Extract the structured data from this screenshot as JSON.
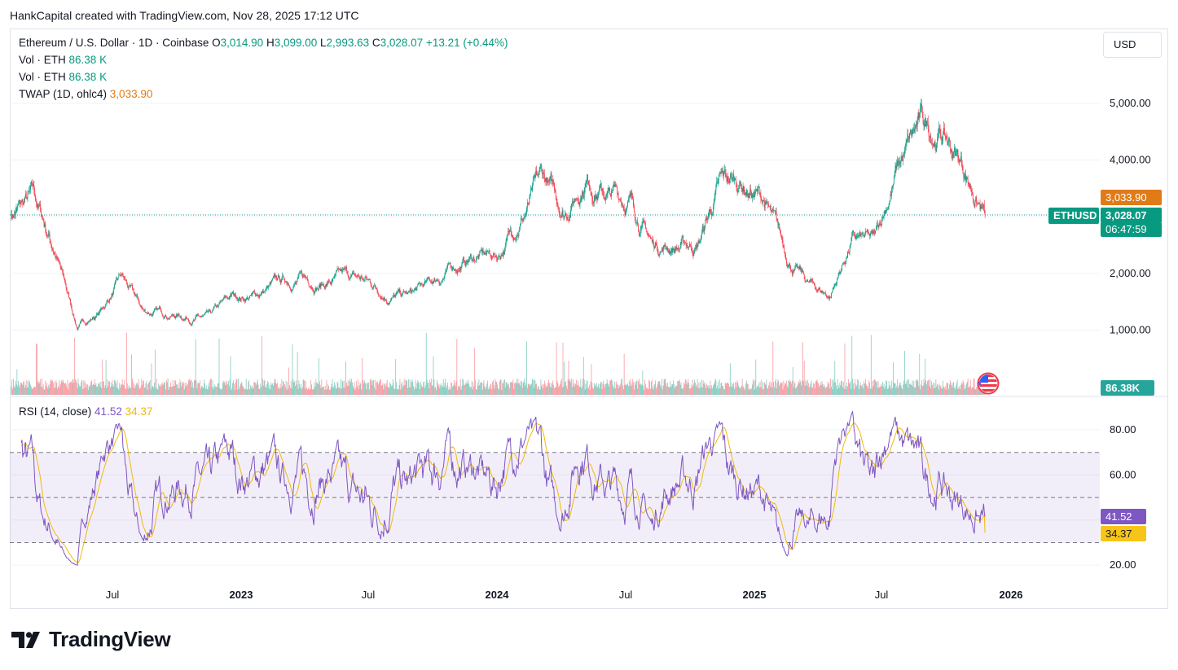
{
  "attribution": "HankCapital created with TradingView.com, Nov 28, 2025 17:12 UTC",
  "legend": {
    "symbol": "Ethereum / U.S. Dollar · 1D · Coinbase",
    "open_label": "O",
    "open_value": "3,014.90",
    "high_label": "H",
    "high_value": "3,099.00",
    "low_label": "L",
    "low_value": "2,993.63",
    "close_label": "C",
    "close_value": "3,028.07",
    "change": "+13.21 (+0.44%)",
    "vol1_label": "Vol · ETH",
    "vol1_value": "86.38 K",
    "vol2_label": "Vol · ETH",
    "vol2_value": "86.38 K",
    "twap_label": "TWAP (1D, ohlc4)",
    "twap_value": "3,033.90",
    "rsi_label": "RSI (14, close)",
    "rsi_value": "41.52",
    "rsi_ma_value": "34.37"
  },
  "currency_button": "USD",
  "price_axis": [
    "5,000.00",
    "4,000.00",
    "2,000.00",
    "1,000.00"
  ],
  "rsi_axis": [
    "80.00",
    "60.00",
    "20.00"
  ],
  "tags": {
    "twap": "3,033.90",
    "symbol": "ETHUSD",
    "price": "3,028.07",
    "countdown": "06:47:59",
    "volume": "86.38K",
    "rsi": "41.52",
    "rsi_ma": "34.37"
  },
  "time_axis": [
    "Jul",
    "2023",
    "Jul",
    "2024",
    "Jul",
    "2025",
    "Jul",
    "2026"
  ],
  "brand": "TradingView",
  "colors": {
    "up": "#089981",
    "down": "#f23645",
    "rsi": "#7e57c2",
    "rsi_ma": "#f0b90b",
    "twap": "#e07b18"
  },
  "chart_data": {
    "type": "line",
    "title": "Ethereum / U.S. Dollar · 1D · Coinbase",
    "x": [
      "2022-03",
      "2022-04",
      "2022-05",
      "2022-06",
      "2022-07",
      "2022-08",
      "2022-09",
      "2022-10",
      "2022-11",
      "2022-12",
      "2023-01",
      "2023-02",
      "2023-03",
      "2023-04",
      "2023-05",
      "2023-06",
      "2023-07",
      "2023-08",
      "2023-09",
      "2023-10",
      "2023-11",
      "2023-12",
      "2024-01",
      "2024-02",
      "2024-03",
      "2024-04",
      "2024-05",
      "2024-06",
      "2024-07",
      "2024-08",
      "2024-09",
      "2024-10",
      "2024-11",
      "2024-12",
      "2025-01",
      "2025-02",
      "2025-03",
      "2025-04",
      "2025-05",
      "2025-06",
      "2025-07",
      "2025-08",
      "2025-09",
      "2025-10",
      "2025-11"
    ],
    "series": [
      {
        "name": "ETHUSD",
        "values": [
          3050,
          3300,
          2400,
          1050,
          1300,
          1900,
          1300,
          1300,
          1250,
          1200,
          1550,
          1600,
          1800,
          1900,
          1850,
          1900,
          1850,
          1650,
          1600,
          1800,
          2100,
          2300,
          2300,
          3000,
          3600,
          3100,
          3800,
          3400,
          3300,
          2500,
          2500,
          2500,
          3500,
          3600,
          3300,
          2300,
          1800,
          1600,
          2600,
          2500,
          3800,
          4500,
          4500,
          3900,
          3028.07
        ]
      }
    ],
    "rsi": {
      "period": 14,
      "last": 41.52,
      "ma_last": 34.37,
      "levels": [
        70,
        50,
        30
      ]
    },
    "ylim": [
      0,
      5500
    ],
    "rsi_ylim": [
      10,
      90
    ],
    "last_close": 3028.07,
    "twap": 3033.9,
    "last_volume": "86.38K"
  }
}
